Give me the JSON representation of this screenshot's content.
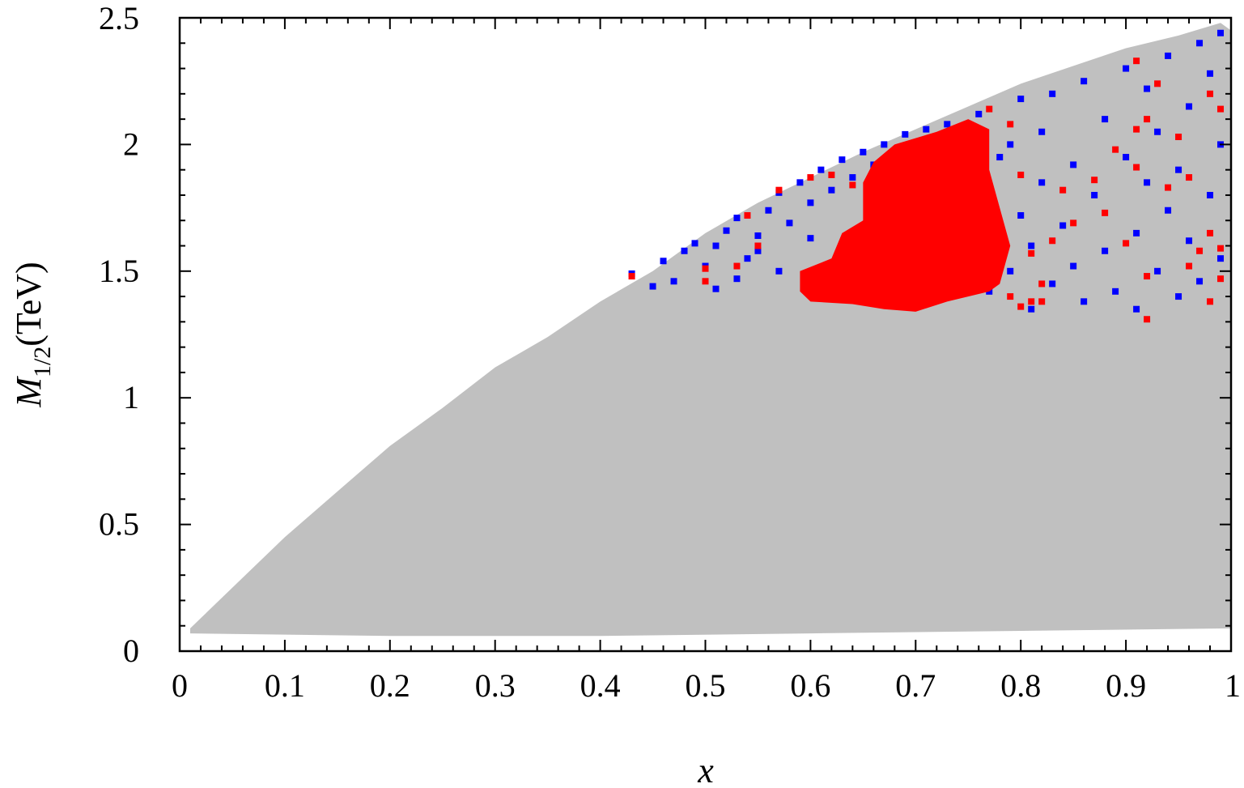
{
  "chart_data": {
    "type": "scatter",
    "title": "",
    "xlabel": "x",
    "ylabel_main": "M",
    "ylabel_sub": "1/2",
    "ylabel_unit": "(TeV)",
    "xlim": [
      0,
      1
    ],
    "ylim": [
      0,
      2.5
    ],
    "x_ticks": [
      0,
      0.1,
      0.2,
      0.3,
      0.4,
      0.5,
      0.6,
      0.7,
      0.8,
      0.9,
      1
    ],
    "x_tick_labels": [
      "0",
      "0.1",
      "0.2",
      "0.3",
      "0.4",
      "0.5",
      "0.6",
      "0.7",
      "0.8",
      "0.9",
      "1"
    ],
    "y_ticks": [
      0,
      0.5,
      1,
      1.5,
      2,
      2.5
    ],
    "y_tick_labels": [
      "0",
      "0.5",
      "1",
      "1.5",
      "2",
      "2.5"
    ],
    "grid": false,
    "legend": "none",
    "colors": {
      "allowed_region": "#c0c0c0",
      "blue_points": "#0000ff",
      "red_points": "#ff0000"
    },
    "region": {
      "name": "",
      "upper_edge": [
        [
          0.01,
          0.09
        ],
        [
          0.05,
          0.25
        ],
        [
          0.1,
          0.45
        ],
        [
          0.15,
          0.63
        ],
        [
          0.2,
          0.81
        ],
        [
          0.25,
          0.96
        ],
        [
          0.3,
          1.12
        ],
        [
          0.35,
          1.24
        ],
        [
          0.4,
          1.38
        ],
        [
          0.45,
          1.5
        ],
        [
          0.5,
          1.65
        ],
        [
          0.55,
          1.77
        ],
        [
          0.6,
          1.87
        ],
        [
          0.65,
          1.97
        ],
        [
          0.7,
          2.06
        ],
        [
          0.75,
          2.15
        ],
        [
          0.8,
          2.24
        ],
        [
          0.85,
          2.31
        ],
        [
          0.9,
          2.38
        ],
        [
          0.95,
          2.43
        ],
        [
          0.99,
          2.48
        ]
      ],
      "lower_edge": [
        [
          0.01,
          0.07
        ],
        [
          0.2,
          0.06
        ],
        [
          0.4,
          0.06
        ],
        [
          0.6,
          0.07
        ],
        [
          0.8,
          0.08
        ],
        [
          1.0,
          0.09
        ]
      ],
      "right_edge_top": 2.45
    },
    "series": [
      {
        "name": "",
        "values": [
          [
            0.43,
            1.49
          ],
          [
            0.45,
            1.44
          ],
          [
            0.46,
            1.54
          ],
          [
            0.48,
            1.58
          ],
          [
            0.49,
            1.61
          ],
          [
            0.5,
            1.52
          ],
          [
            0.51,
            1.6
          ],
          [
            0.52,
            1.66
          ],
          [
            0.53,
            1.71
          ],
          [
            0.54,
            1.55
          ],
          [
            0.55,
            1.64
          ],
          [
            0.56,
            1.74
          ],
          [
            0.57,
            1.81
          ],
          [
            0.58,
            1.69
          ],
          [
            0.59,
            1.85
          ],
          [
            0.6,
            1.77
          ],
          [
            0.61,
            1.9
          ],
          [
            0.62,
            1.82
          ],
          [
            0.63,
            1.94
          ],
          [
            0.64,
            1.87
          ],
          [
            0.65,
            1.97
          ],
          [
            0.66,
            1.92
          ],
          [
            0.67,
            2.0
          ],
          [
            0.68,
            1.96
          ],
          [
            0.69,
            2.04
          ],
          [
            0.71,
            2.06
          ],
          [
            0.73,
            2.08
          ],
          [
            0.76,
            2.12
          ],
          [
            0.78,
            1.95
          ],
          [
            0.79,
            2.0
          ],
          [
            0.8,
            2.18
          ],
          [
            0.8,
            1.72
          ],
          [
            0.81,
            1.6
          ],
          [
            0.82,
            1.85
          ],
          [
            0.82,
            2.05
          ],
          [
            0.83,
            1.45
          ],
          [
            0.83,
            2.2
          ],
          [
            0.84,
            1.68
          ],
          [
            0.85,
            1.52
          ],
          [
            0.85,
            1.92
          ],
          [
            0.86,
            2.25
          ],
          [
            0.86,
            1.38
          ],
          [
            0.87,
            1.8
          ],
          [
            0.88,
            1.58
          ],
          [
            0.88,
            2.1
          ],
          [
            0.89,
            1.42
          ],
          [
            0.9,
            1.95
          ],
          [
            0.9,
            2.3
          ],
          [
            0.91,
            1.65
          ],
          [
            0.91,
            1.35
          ],
          [
            0.92,
            1.85
          ],
          [
            0.92,
            2.22
          ],
          [
            0.93,
            1.5
          ],
          [
            0.93,
            2.05
          ],
          [
            0.94,
            1.74
          ],
          [
            0.94,
            2.35
          ],
          [
            0.95,
            1.4
          ],
          [
            0.95,
            1.9
          ],
          [
            0.96,
            2.15
          ],
          [
            0.96,
            1.62
          ],
          [
            0.97,
            2.4
          ],
          [
            0.97,
            1.46
          ],
          [
            0.98,
            1.8
          ],
          [
            0.98,
            2.28
          ],
          [
            0.99,
            1.55
          ],
          [
            0.99,
            2.44
          ],
          [
            0.99,
            2.0
          ],
          [
            0.74,
            1.55
          ],
          [
            0.76,
            1.7
          ],
          [
            0.77,
            1.42
          ],
          [
            0.79,
            1.5
          ],
          [
            0.81,
            1.35
          ],
          [
            0.6,
            1.63
          ],
          [
            0.63,
            1.52
          ],
          [
            0.57,
            1.5
          ],
          [
            0.53,
            1.47
          ],
          [
            0.55,
            1.58
          ],
          [
            0.47,
            1.46
          ],
          [
            0.51,
            1.43
          ]
        ]
      },
      {
        "name": "",
        "values": [
          [
            0.43,
            1.48
          ],
          [
            0.5,
            1.46
          ],
          [
            0.5,
            1.51
          ],
          [
            0.53,
            1.52
          ],
          [
            0.54,
            1.72
          ],
          [
            0.55,
            1.6
          ],
          [
            0.57,
            1.82
          ],
          [
            0.6,
            1.87
          ],
          [
            0.62,
            1.88
          ],
          [
            0.64,
            1.84
          ],
          [
            0.77,
            2.14
          ],
          [
            0.79,
            2.08
          ],
          [
            0.8,
            1.88
          ],
          [
            0.81,
            1.57
          ],
          [
            0.81,
            1.38
          ],
          [
            0.82,
            1.45
          ],
          [
            0.84,
            1.82
          ],
          [
            0.85,
            1.69
          ],
          [
            0.87,
            1.86
          ],
          [
            0.88,
            1.73
          ],
          [
            0.89,
            1.98
          ],
          [
            0.9,
            1.61
          ],
          [
            0.91,
            2.06
          ],
          [
            0.91,
            1.91
          ],
          [
            0.92,
            2.1
          ],
          [
            0.92,
            1.48
          ],
          [
            0.92,
            1.31
          ],
          [
            0.93,
            2.24
          ],
          [
            0.94,
            1.83
          ],
          [
            0.95,
            2.03
          ],
          [
            0.96,
            1.87
          ],
          [
            0.97,
            1.58
          ],
          [
            0.98,
            1.65
          ],
          [
            0.98,
            2.2
          ],
          [
            0.99,
            1.47
          ],
          [
            0.99,
            2.14
          ],
          [
            0.99,
            1.59
          ],
          [
            0.91,
            2.33
          ],
          [
            0.8,
            1.36
          ],
          [
            0.79,
            1.4
          ],
          [
            0.82,
            1.38
          ],
          [
            0.83,
            1.62
          ],
          [
            0.96,
            1.52
          ],
          [
            0.98,
            1.38
          ]
        ]
      }
    ],
    "red_cluster": {
      "name": "",
      "outline": [
        [
          0.59,
          1.5
        ],
        [
          0.62,
          1.55
        ],
        [
          0.63,
          1.65
        ],
        [
          0.65,
          1.7
        ],
        [
          0.65,
          1.85
        ],
        [
          0.66,
          1.93
        ],
        [
          0.68,
          2.0
        ],
        [
          0.72,
          2.05
        ],
        [
          0.75,
          2.1
        ],
        [
          0.77,
          2.06
        ],
        [
          0.77,
          1.9
        ],
        [
          0.78,
          1.75
        ],
        [
          0.79,
          1.6
        ],
        [
          0.78,
          1.45
        ],
        [
          0.77,
          1.42
        ],
        [
          0.73,
          1.38
        ],
        [
          0.7,
          1.34
        ],
        [
          0.67,
          1.35
        ],
        [
          0.64,
          1.37
        ],
        [
          0.6,
          1.38
        ],
        [
          0.59,
          1.42
        ]
      ]
    }
  }
}
